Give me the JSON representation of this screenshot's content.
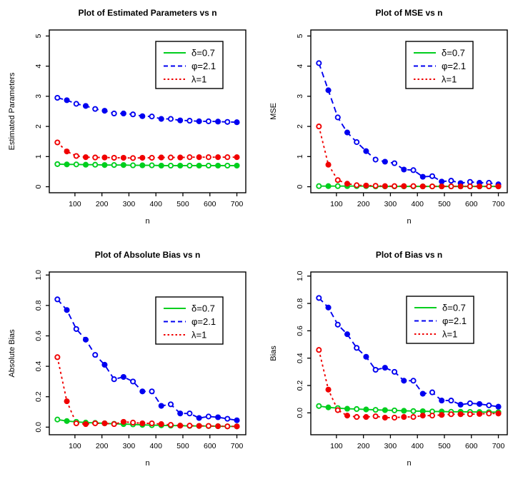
{
  "figure": {
    "background": "#ffffff",
    "axis_color": "#000000",
    "legend_border_color": "#000000",
    "legend_fill": "#ffffff"
  },
  "chart_data": [
    {
      "type": "line",
      "title": "Plot of Estimated Parameters vs n",
      "xlabel": "n",
      "ylabel": "Estimated Parameters",
      "x": [
        35,
        70,
        105,
        140,
        175,
        210,
        245,
        280,
        315,
        350,
        385,
        420,
        455,
        490,
        525,
        560,
        595,
        630,
        665,
        700
      ],
      "xticks": [
        100,
        200,
        300,
        400,
        500,
        600,
        700
      ],
      "xtick_labels": [
        "100",
        "200",
        "300",
        "400",
        "500",
        "600",
        "700"
      ],
      "yticks": [
        0,
        1,
        2,
        3,
        4,
        5
      ],
      "ytick_labels": [
        "0",
        "1",
        "2",
        "3",
        "4",
        "5"
      ],
      "xlim": [
        5,
        733
      ],
      "ylim": [
        -0.2,
        5.2
      ],
      "legend_position": "topright",
      "grid": false,
      "series": [
        {
          "name": "δ=0.7",
          "color": "#00CE1E",
          "dash": "",
          "values": [
            0.75,
            0.74,
            0.74,
            0.73,
            0.73,
            0.72,
            0.72,
            0.72,
            0.71,
            0.71,
            0.71,
            0.7,
            0.7,
            0.7,
            0.7,
            0.7,
            0.7,
            0.7,
            0.7,
            0.7
          ]
        },
        {
          "name": "φ=2.1",
          "color": "#0000F0",
          "dash": "8,5",
          "values": [
            2.95,
            2.87,
            2.75,
            2.68,
            2.58,
            2.52,
            2.43,
            2.43,
            2.4,
            2.34,
            2.33,
            2.25,
            2.25,
            2.2,
            2.19,
            2.17,
            2.17,
            2.16,
            2.15,
            2.14
          ]
        },
        {
          "name": "λ=1",
          "color": "#F00000",
          "dash": "3,4",
          "values": [
            1.47,
            1.17,
            1.02,
            0.98,
            0.97,
            0.97,
            0.96,
            0.96,
            0.95,
            0.96,
            0.96,
            0.97,
            0.97,
            0.97,
            0.98,
            0.98,
            0.98,
            0.98,
            0.98,
            0.98
          ]
        }
      ]
    },
    {
      "type": "line",
      "title": "Plot of MSE vs n",
      "xlabel": "n",
      "ylabel": "MSE",
      "x": [
        35,
        70,
        105,
        140,
        175,
        210,
        245,
        280,
        315,
        350,
        385,
        420,
        455,
        490,
        525,
        560,
        595,
        630,
        665,
        700
      ],
      "xticks": [
        100,
        200,
        300,
        400,
        500,
        600,
        700
      ],
      "xtick_labels": [
        "100",
        "200",
        "300",
        "400",
        "500",
        "600",
        "700"
      ],
      "yticks": [
        0,
        1,
        2,
        3,
        4,
        5
      ],
      "ytick_labels": [
        "0",
        "1",
        "2",
        "3",
        "4",
        "5"
      ],
      "xlim": [
        5,
        733
      ],
      "ylim": [
        -0.2,
        5.2
      ],
      "legend_position": "topright",
      "grid": false,
      "series": [
        {
          "name": "δ=0.7",
          "color": "#00CE1E",
          "dash": "",
          "values": [
            0.02,
            0.02,
            0.02,
            0.02,
            0.02,
            0.02,
            0.01,
            0.01,
            0.01,
            0.01,
            0.01,
            0.01,
            0.01,
            0.01,
            0.01,
            0.01,
            0.01,
            0.01,
            0.01,
            0.01
          ]
        },
        {
          "name": "φ=2.1",
          "color": "#0000F0",
          "dash": "8,5",
          "values": [
            4.1,
            3.2,
            2.3,
            1.8,
            1.48,
            1.18,
            0.9,
            0.83,
            0.78,
            0.57,
            0.55,
            0.33,
            0.35,
            0.17,
            0.2,
            0.12,
            0.16,
            0.13,
            0.13,
            0.08
          ]
        },
        {
          "name": "λ=1",
          "color": "#F00000",
          "dash": "3,4",
          "values": [
            2.0,
            0.73,
            0.22,
            0.1,
            0.05,
            0.04,
            0.03,
            0.02,
            0.02,
            0.02,
            0.02,
            0.01,
            0.01,
            0.01,
            0.01,
            0.01,
            0.01,
            0.01,
            0.01,
            0.01
          ]
        }
      ]
    },
    {
      "type": "line",
      "title": "Plot of Absolute Bias vs n",
      "xlabel": "n",
      "ylabel": "Absolute Bias",
      "x": [
        35,
        70,
        105,
        140,
        175,
        210,
        245,
        280,
        315,
        350,
        385,
        420,
        455,
        490,
        525,
        560,
        595,
        630,
        665,
        700
      ],
      "xticks": [
        100,
        200,
        300,
        400,
        500,
        600,
        700
      ],
      "xtick_labels": [
        "100",
        "200",
        "300",
        "400",
        "500",
        "600",
        "700"
      ],
      "yticks": [
        0,
        0.2,
        0.4,
        0.6,
        0.8,
        1.0
      ],
      "ytick_labels": [
        "0.0",
        "0.2",
        "0.4",
        "0.6",
        "0.8",
        "1.0"
      ],
      "xlim": [
        5,
        733
      ],
      "ylim": [
        -0.05,
        1.02
      ],
      "legend_position": "topright",
      "grid": false,
      "series": [
        {
          "name": "δ=0.7",
          "color": "#00CE1E",
          "dash": "",
          "values": [
            0.05,
            0.04,
            0.035,
            0.03,
            0.028,
            0.025,
            0.022,
            0.02,
            0.018,
            0.015,
            0.013,
            0.012,
            0.01,
            0.01,
            0.008,
            0.008,
            0.007,
            0.006,
            0.005,
            0.005
          ]
        },
        {
          "name": "φ=2.1",
          "color": "#0000F0",
          "dash": "8,5",
          "values": [
            0.84,
            0.77,
            0.645,
            0.575,
            0.475,
            0.41,
            0.315,
            0.33,
            0.3,
            0.235,
            0.235,
            0.14,
            0.15,
            0.09,
            0.09,
            0.06,
            0.07,
            0.065,
            0.055,
            0.045
          ]
        },
        {
          "name": "λ=1",
          "color": "#F00000",
          "dash": "3,4",
          "values": [
            0.46,
            0.17,
            0.025,
            0.02,
            0.025,
            0.025,
            0.02,
            0.035,
            0.03,
            0.025,
            0.025,
            0.02,
            0.015,
            0.01,
            0.01,
            0.008,
            0.008,
            0.006,
            0.005,
            0.005
          ]
        }
      ]
    },
    {
      "type": "line",
      "title": "Plot of Bias vs n",
      "xlabel": "n",
      "ylabel": "Bias",
      "x": [
        35,
        70,
        105,
        140,
        175,
        210,
        245,
        280,
        315,
        350,
        385,
        420,
        455,
        490,
        525,
        560,
        595,
        630,
        665,
        700
      ],
      "xticks": [
        100,
        200,
        300,
        400,
        500,
        600,
        700
      ],
      "xtick_labels": [
        "100",
        "200",
        "300",
        "400",
        "500",
        "600",
        "700"
      ],
      "yticks": [
        0,
        0.2,
        0.4,
        0.6,
        0.8,
        1.0
      ],
      "ytick_labels": [
        "0.0",
        "0.2",
        "0.4",
        "0.6",
        "0.8",
        "1.0"
      ],
      "xlim": [
        5,
        733
      ],
      "ylim": [
        -0.16,
        1.03
      ],
      "legend_position": "topright",
      "grid": false,
      "series": [
        {
          "name": "δ=0.7",
          "color": "#00CE1E",
          "dash": "",
          "values": [
            0.05,
            0.04,
            0.035,
            0.03,
            0.028,
            0.025,
            0.022,
            0.02,
            0.018,
            0.015,
            0.013,
            0.012,
            0.01,
            0.01,
            0.008,
            0.008,
            0.007,
            0.006,
            0.005,
            0.005
          ]
        },
        {
          "name": "φ=2.1",
          "color": "#0000F0",
          "dash": "8,5",
          "values": [
            0.84,
            0.77,
            0.645,
            0.575,
            0.475,
            0.41,
            0.315,
            0.33,
            0.3,
            0.235,
            0.235,
            0.14,
            0.15,
            0.09,
            0.09,
            0.06,
            0.07,
            0.065,
            0.055,
            0.045
          ]
        },
        {
          "name": "λ=1",
          "color": "#F00000",
          "dash": "3,4",
          "values": [
            0.46,
            0.17,
            0.02,
            -0.02,
            -0.03,
            -0.03,
            -0.025,
            -0.035,
            -0.035,
            -0.03,
            -0.03,
            -0.02,
            -0.02,
            -0.015,
            -0.01,
            -0.01,
            -0.01,
            -0.008,
            -0.005,
            -0.005
          ]
        }
      ]
    }
  ]
}
